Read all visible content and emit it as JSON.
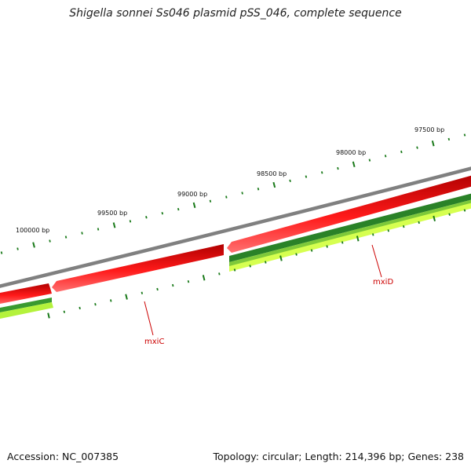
{
  "title": "Shigella sonnei Ss046 plasmid pSS_046, complete sequence",
  "footer": {
    "accession": "Accession: NC_007385",
    "summary": "Topology: circular; Length: 214,396 bp; Genes: 238"
  },
  "colors": {
    "backbone": "#888888",
    "forward_gene": "#ee1111",
    "reverse_gene_dark": "#2a8a2a",
    "reverse_gene_light": "#b8f040",
    "ticks": "#1a7a1a",
    "gene_label": "#cc0000"
  },
  "scale_labels": [
    "100000 bp",
    "99500 bp",
    "99000 bp",
    "98500 bp",
    "98000 bp",
    "97500 bp"
  ],
  "gene_labels": [
    "mxiC",
    "mxiD"
  ]
}
